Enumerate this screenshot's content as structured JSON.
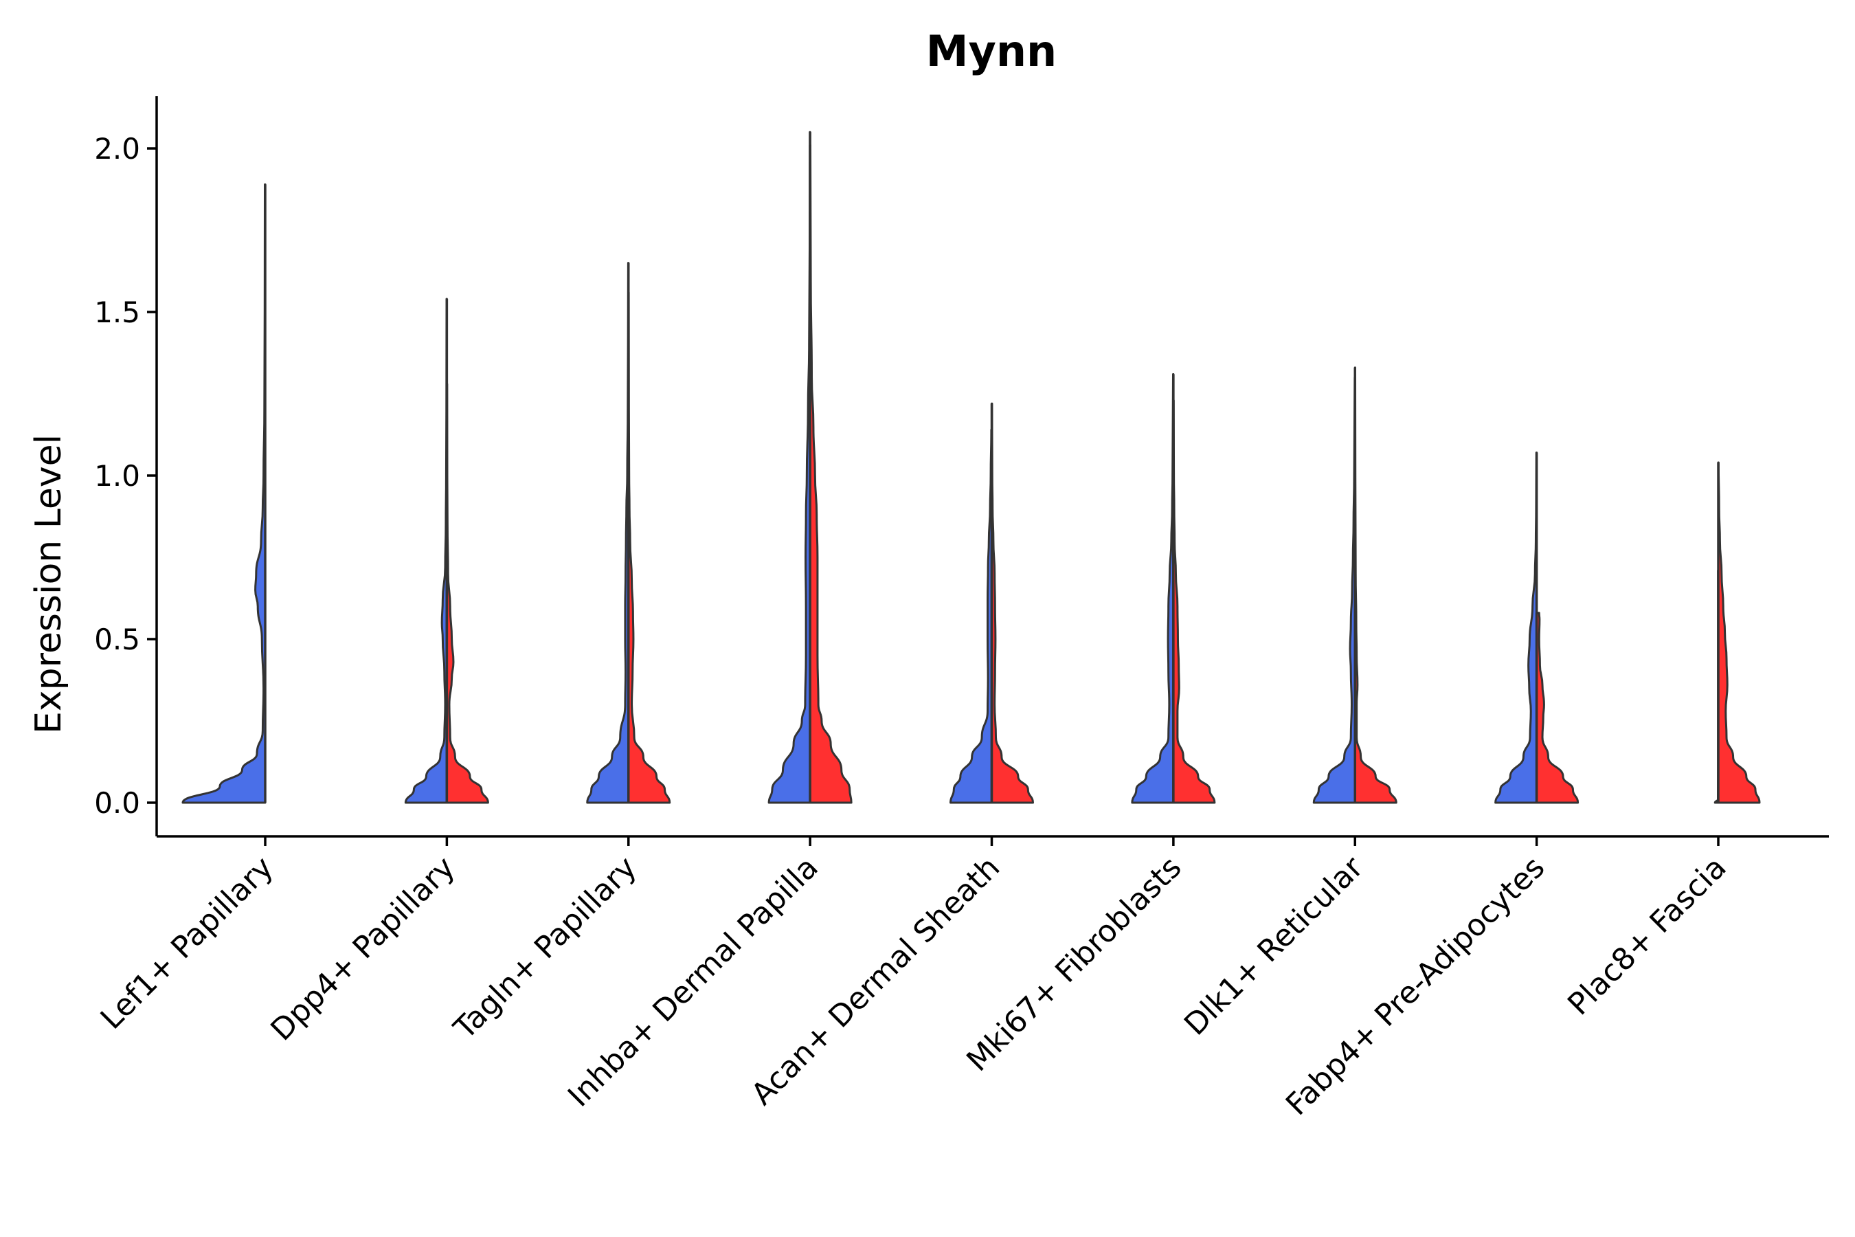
{
  "chart_data": {
    "type": "violin",
    "title": "Mynn",
    "ylabel": "Expression Level",
    "xlabel": "",
    "ylim": [
      -0.1,
      2.15
    ],
    "yticks": [
      0.0,
      0.5,
      1.0,
      1.5,
      2.0
    ],
    "ytick_labels": [
      "0.0",
      "0.5",
      "1.0",
      "1.5",
      "2.0"
    ],
    "grid": false,
    "legend": "none",
    "colors": {
      "left": "#4a6fe8",
      "right": "#ff3030",
      "outline": "#333333"
    },
    "categories": [
      "Lef1+ Papillary",
      "Dpp4+ Papillary",
      "Tagln+ Papillary",
      "Inhba+ Dermal Papilla",
      "Acan+ Dermal Sheath",
      "Mki67+ Fibroblasts",
      "Dlk1+ Reticular",
      "Fabp4+ Pre-Adipocytes",
      "Plac8+ Fascia"
    ],
    "violins": [
      {
        "category": "Lef1+ Papillary",
        "side": "left",
        "max": 1.89,
        "profile": [
          [
            0.0,
            1.0
          ],
          [
            0.05,
            0.55
          ],
          [
            0.1,
            0.28
          ],
          [
            0.15,
            0.1
          ],
          [
            0.22,
            0.03
          ],
          [
            0.35,
            0.02
          ],
          [
            0.5,
            0.04
          ],
          [
            0.6,
            0.09
          ],
          [
            0.65,
            0.12
          ],
          [
            0.7,
            0.11
          ],
          [
            0.8,
            0.05
          ],
          [
            0.9,
            0.03
          ],
          [
            1.0,
            0.02
          ],
          [
            1.2,
            0.01
          ],
          [
            1.5,
            0.006
          ],
          [
            1.89,
            0.004
          ]
        ]
      },
      {
        "category": "Dpp4+ Papillary",
        "side": "left",
        "max": 1.54,
        "profile": [
          [
            0.0,
            0.5
          ],
          [
            0.04,
            0.4
          ],
          [
            0.08,
            0.25
          ],
          [
            0.14,
            0.08
          ],
          [
            0.2,
            0.03
          ],
          [
            0.3,
            0.02
          ],
          [
            0.4,
            0.03
          ],
          [
            0.5,
            0.05
          ],
          [
            0.55,
            0.06
          ],
          [
            0.62,
            0.05
          ],
          [
            0.72,
            0.02
          ],
          [
            0.85,
            0.012
          ],
          [
            1.0,
            0.008
          ],
          [
            1.2,
            0.005
          ],
          [
            1.54,
            0.003
          ]
        ]
      },
      {
        "category": "Dpp4+ Papillary",
        "side": "right",
        "max": 1.28,
        "profile": [
          [
            0.0,
            0.5
          ],
          [
            0.04,
            0.42
          ],
          [
            0.08,
            0.28
          ],
          [
            0.14,
            0.1
          ],
          [
            0.2,
            0.04
          ],
          [
            0.3,
            0.03
          ],
          [
            0.38,
            0.06
          ],
          [
            0.43,
            0.08
          ],
          [
            0.5,
            0.06
          ],
          [
            0.6,
            0.04
          ],
          [
            0.7,
            0.015
          ],
          [
            0.85,
            0.008
          ],
          [
            1.0,
            0.005
          ],
          [
            1.28,
            0.003
          ]
        ]
      },
      {
        "category": "Tagln+ Papillary",
        "side": "left",
        "max": 1.65,
        "profile": [
          [
            0.0,
            0.5
          ],
          [
            0.04,
            0.45
          ],
          [
            0.08,
            0.36
          ],
          [
            0.14,
            0.2
          ],
          [
            0.2,
            0.1
          ],
          [
            0.3,
            0.04
          ],
          [
            0.4,
            0.035
          ],
          [
            0.5,
            0.04
          ],
          [
            0.6,
            0.04
          ],
          [
            0.7,
            0.035
          ],
          [
            0.8,
            0.03
          ],
          [
            0.9,
            0.025
          ],
          [
            1.0,
            0.015
          ],
          [
            1.2,
            0.008
          ],
          [
            1.4,
            0.005
          ],
          [
            1.65,
            0.003
          ]
        ]
      },
      {
        "category": "Tagln+ Papillary",
        "side": "right",
        "max": 1.56,
        "profile": [
          [
            0.0,
            0.5
          ],
          [
            0.04,
            0.44
          ],
          [
            0.08,
            0.34
          ],
          [
            0.14,
            0.18
          ],
          [
            0.2,
            0.07
          ],
          [
            0.3,
            0.04
          ],
          [
            0.4,
            0.05
          ],
          [
            0.5,
            0.06
          ],
          [
            0.58,
            0.055
          ],
          [
            0.68,
            0.04
          ],
          [
            0.8,
            0.02
          ],
          [
            0.9,
            0.012
          ],
          [
            1.0,
            0.008
          ],
          [
            1.2,
            0.005
          ],
          [
            1.56,
            0.003
          ]
        ]
      },
      {
        "category": "Inhba+ Dermal Papilla",
        "side": "left",
        "max": 2.05,
        "profile": [
          [
            0.0,
            0.5
          ],
          [
            0.04,
            0.46
          ],
          [
            0.1,
            0.33
          ],
          [
            0.18,
            0.2
          ],
          [
            0.25,
            0.1
          ],
          [
            0.3,
            0.06
          ],
          [
            0.45,
            0.05
          ],
          [
            0.6,
            0.05
          ],
          [
            0.75,
            0.055
          ],
          [
            0.88,
            0.05
          ],
          [
            1.0,
            0.04
          ],
          [
            1.2,
            0.025
          ],
          [
            1.4,
            0.012
          ],
          [
            1.7,
            0.005
          ],
          [
            2.05,
            0.003
          ]
        ]
      },
      {
        "category": "Inhba+ Dermal Papilla",
        "side": "right",
        "max": 2.01,
        "profile": [
          [
            0.0,
            0.5
          ],
          [
            0.04,
            0.48
          ],
          [
            0.1,
            0.38
          ],
          [
            0.18,
            0.25
          ],
          [
            0.25,
            0.14
          ],
          [
            0.3,
            0.1
          ],
          [
            0.45,
            0.09
          ],
          [
            0.6,
            0.09
          ],
          [
            0.75,
            0.09
          ],
          [
            0.88,
            0.08
          ],
          [
            1.0,
            0.06
          ],
          [
            1.15,
            0.04
          ],
          [
            1.3,
            0.02
          ],
          [
            1.6,
            0.008
          ],
          [
            2.01,
            0.003
          ]
        ]
      },
      {
        "category": "Acan+ Dermal Sheath",
        "side": "left",
        "max": 1.14,
        "profile": [
          [
            0.0,
            0.5
          ],
          [
            0.04,
            0.46
          ],
          [
            0.08,
            0.38
          ],
          [
            0.14,
            0.24
          ],
          [
            0.2,
            0.12
          ],
          [
            0.28,
            0.05
          ],
          [
            0.38,
            0.045
          ],
          [
            0.5,
            0.05
          ],
          [
            0.62,
            0.05
          ],
          [
            0.72,
            0.045
          ],
          [
            0.8,
            0.035
          ],
          [
            0.9,
            0.02
          ],
          [
            1.0,
            0.012
          ],
          [
            1.14,
            0.005
          ]
        ]
      },
      {
        "category": "Acan+ Dermal Sheath",
        "side": "right",
        "max": 1.22,
        "profile": [
          [
            0.0,
            0.5
          ],
          [
            0.04,
            0.44
          ],
          [
            0.08,
            0.32
          ],
          [
            0.14,
            0.12
          ],
          [
            0.2,
            0.05
          ],
          [
            0.3,
            0.035
          ],
          [
            0.4,
            0.04
          ],
          [
            0.5,
            0.045
          ],
          [
            0.6,
            0.04
          ],
          [
            0.7,
            0.035
          ],
          [
            0.8,
            0.02
          ],
          [
            0.9,
            0.01
          ],
          [
            1.0,
            0.006
          ],
          [
            1.22,
            0.003
          ]
        ]
      },
      {
        "category": "Mki67+ Fibroblasts",
        "side": "left",
        "max": 1.31,
        "profile": [
          [
            0.0,
            0.5
          ],
          [
            0.04,
            0.45
          ],
          [
            0.08,
            0.33
          ],
          [
            0.14,
            0.16
          ],
          [
            0.2,
            0.06
          ],
          [
            0.3,
            0.05
          ],
          [
            0.4,
            0.06
          ],
          [
            0.5,
            0.065
          ],
          [
            0.6,
            0.06
          ],
          [
            0.7,
            0.045
          ],
          [
            0.8,
            0.025
          ],
          [
            0.9,
            0.015
          ],
          [
            1.0,
            0.01
          ],
          [
            1.31,
            0.003
          ]
        ]
      },
      {
        "category": "Mki67+ Fibroblasts",
        "side": "right",
        "max": 1.23,
        "profile": [
          [
            0.0,
            0.5
          ],
          [
            0.04,
            0.44
          ],
          [
            0.08,
            0.3
          ],
          [
            0.14,
            0.12
          ],
          [
            0.2,
            0.05
          ],
          [
            0.28,
            0.05
          ],
          [
            0.35,
            0.07
          ],
          [
            0.42,
            0.065
          ],
          [
            0.5,
            0.055
          ],
          [
            0.6,
            0.05
          ],
          [
            0.7,
            0.03
          ],
          [
            0.8,
            0.015
          ],
          [
            0.9,
            0.01
          ],
          [
            1.0,
            0.006
          ],
          [
            1.23,
            0.003
          ]
        ]
      },
      {
        "category": "Dlk1+ Reticular",
        "side": "left",
        "max": 1.3,
        "profile": [
          [
            0.0,
            0.5
          ],
          [
            0.04,
            0.44
          ],
          [
            0.08,
            0.32
          ],
          [
            0.14,
            0.13
          ],
          [
            0.2,
            0.05
          ],
          [
            0.3,
            0.04
          ],
          [
            0.4,
            0.05
          ],
          [
            0.47,
            0.06
          ],
          [
            0.55,
            0.05
          ],
          [
            0.65,
            0.035
          ],
          [
            0.75,
            0.025
          ],
          [
            0.85,
            0.018
          ],
          [
            1.0,
            0.01
          ],
          [
            1.3,
            0.003
          ]
        ]
      },
      {
        "category": "Dlk1+ Reticular",
        "side": "right",
        "max": 1.33,
        "profile": [
          [
            0.0,
            0.5
          ],
          [
            0.04,
            0.42
          ],
          [
            0.08,
            0.25
          ],
          [
            0.14,
            0.07
          ],
          [
            0.2,
            0.02
          ],
          [
            0.3,
            0.02
          ],
          [
            0.36,
            0.03
          ],
          [
            0.45,
            0.02
          ],
          [
            0.55,
            0.015
          ],
          [
            0.7,
            0.008
          ],
          [
            1.0,
            0.004
          ],
          [
            1.33,
            0.002
          ]
        ]
      },
      {
        "category": "Fabp4+ Pre-Adipocytes",
        "side": "left",
        "max": 1.07,
        "profile": [
          [
            0.0,
            0.5
          ],
          [
            0.04,
            0.44
          ],
          [
            0.08,
            0.32
          ],
          [
            0.14,
            0.16
          ],
          [
            0.2,
            0.08
          ],
          [
            0.28,
            0.07
          ],
          [
            0.35,
            0.09
          ],
          [
            0.42,
            0.1
          ],
          [
            0.5,
            0.085
          ],
          [
            0.6,
            0.05
          ],
          [
            0.7,
            0.02
          ],
          [
            0.8,
            0.01
          ],
          [
            0.9,
            0.006
          ],
          [
            1.07,
            0.003
          ]
        ]
      },
      {
        "category": "Fabp4+ Pre-Adipocytes",
        "side": "right",
        "max": 0.58,
        "profile": [
          [
            0.0,
            0.5
          ],
          [
            0.04,
            0.44
          ],
          [
            0.08,
            0.32
          ],
          [
            0.14,
            0.14
          ],
          [
            0.2,
            0.07
          ],
          [
            0.26,
            0.08
          ],
          [
            0.3,
            0.09
          ],
          [
            0.36,
            0.07
          ],
          [
            0.42,
            0.04
          ],
          [
            0.5,
            0.03
          ],
          [
            0.56,
            0.035
          ],
          [
            0.58,
            0.03
          ]
        ]
      },
      {
        "category": "Plac8+ Fascia",
        "side": "left",
        "max": 0.71,
        "profile": [
          [
            0.0,
            0.04
          ],
          [
            0.01,
            0.004
          ],
          [
            0.1,
            0.002
          ],
          [
            0.71,
            0.002
          ]
        ]
      },
      {
        "category": "Plac8+ Fascia",
        "side": "right",
        "max": 1.04,
        "profile": [
          [
            0.0,
            0.5
          ],
          [
            0.04,
            0.45
          ],
          [
            0.08,
            0.34
          ],
          [
            0.14,
            0.18
          ],
          [
            0.2,
            0.1
          ],
          [
            0.28,
            0.09
          ],
          [
            0.36,
            0.11
          ],
          [
            0.44,
            0.1
          ],
          [
            0.52,
            0.08
          ],
          [
            0.6,
            0.06
          ],
          [
            0.7,
            0.04
          ],
          [
            0.8,
            0.02
          ],
          [
            0.9,
            0.01
          ],
          [
            1.04,
            0.003
          ]
        ]
      }
    ]
  }
}
